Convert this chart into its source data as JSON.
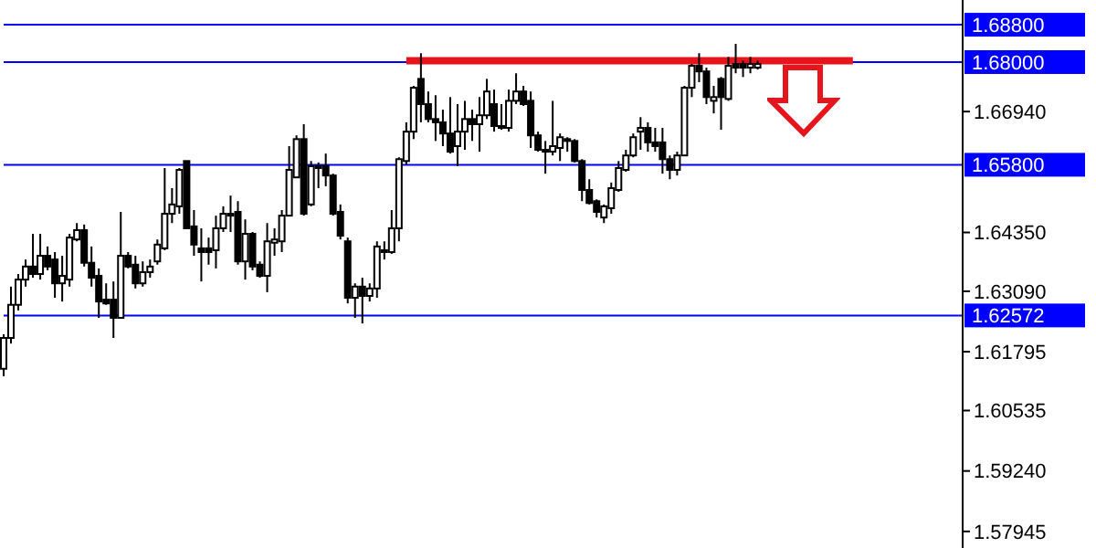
{
  "chart_data": {
    "type": "candlestick",
    "tick_labels": "y",
    "categories": [
      null,
      null,
      null,
      null,
      null,
      null,
      null,
      null,
      null,
      null,
      null,
      null,
      null,
      null,
      null,
      null,
      null,
      null,
      null,
      null,
      null,
      null,
      null,
      null,
      null,
      null,
      null,
      null,
      null,
      null,
      null,
      null,
      null,
      null,
      null,
      null,
      null,
      null,
      null,
      null,
      null,
      null,
      null,
      null,
      null,
      null,
      null,
      null,
      null,
      null,
      null,
      null,
      null,
      null,
      null,
      null,
      null,
      null,
      null,
      null,
      null,
      null,
      null,
      null,
      null,
      null,
      null,
      null,
      null,
      null,
      null,
      null,
      null,
      null,
      null,
      null,
      null,
      null,
      null,
      null,
      null,
      null,
      null,
      null,
      null,
      null,
      null,
      null,
      null,
      null,
      null,
      null,
      null,
      null,
      null,
      null,
      null,
      null,
      null,
      null,
      null,
      null,
      null,
      null,
      null,
      null,
      null,
      null,
      null,
      null,
      null,
      null,
      null,
      null,
      null,
      null,
      null,
      null,
      null,
      null,
      null,
      null,
      null,
      null,
      null,
      null,
      null,
      null,
      null,
      null,
      null,
      null
    ],
    "ylim": [
      1.5759,
      1.6933
    ],
    "yticks": [
      {
        "value": 1.57945,
        "label": "1.57945"
      },
      {
        "value": 1.5924,
        "label": "1.59240"
      },
      {
        "value": 1.60535,
        "label": "1.60535"
      },
      {
        "value": 1.61795,
        "label": "1.61795"
      },
      {
        "value": 1.6309,
        "label": "1.63090"
      },
      {
        "value": 1.6435,
        "label": "1.64350"
      },
      {
        "value": 1.6694,
        "label": "1.66940"
      }
    ],
    "ref_lines": [
      {
        "axis": "y",
        "value": 1.688,
        "label": "1.68800",
        "color": "#0000ff"
      },
      {
        "axis": "y",
        "value": 1.68,
        "label": "1.68000",
        "color": "#0000ff"
      },
      {
        "axis": "y",
        "value": 1.658,
        "label": "1.65800",
        "color": "#0000ff"
      },
      {
        "axis": "y",
        "value": 1.62572,
        "label": "1.62572",
        "color": "#0000ff"
      }
    ],
    "series": [
      {
        "color": "#000000",
        "ohlc": [
          [
            1.6143,
            1.6217,
            1.6127,
            1.6209
          ],
          [
            1.6209,
            1.6319,
            1.6197,
            1.628
          ],
          [
            1.628,
            1.6346,
            1.6268,
            1.6334
          ],
          [
            1.6334,
            1.6377,
            1.6319,
            1.6362
          ],
          [
            1.6362,
            1.6432,
            1.6338,
            1.6346
          ],
          [
            1.6346,
            1.6432,
            1.6334,
            1.6385
          ],
          [
            1.6385,
            1.6405,
            1.6354,
            1.6362
          ],
          [
            1.6377,
            1.6393,
            1.6295,
            1.6326
          ],
          [
            1.6326,
            1.6385,
            1.6287,
            1.6342
          ],
          [
            1.6334,
            1.6432,
            1.6319,
            1.6424
          ],
          [
            1.642,
            1.6455,
            1.6416,
            1.644
          ],
          [
            1.644,
            1.6452,
            1.6362,
            1.637
          ],
          [
            1.637,
            1.6405,
            1.6319,
            1.6338
          ],
          [
            1.6342,
            1.6358,
            1.6252,
            1.6287
          ],
          [
            1.6291,
            1.6326,
            1.628,
            1.6283
          ],
          [
            1.6291,
            1.633,
            1.6209,
            1.6252
          ],
          [
            1.6252,
            1.6479,
            1.6252,
            1.6385
          ],
          [
            1.6385,
            1.6393,
            1.6358,
            1.6362
          ],
          [
            1.6366,
            1.6385,
            1.6315,
            1.6326
          ],
          [
            1.6326,
            1.6373,
            1.6319,
            1.635
          ],
          [
            1.635,
            1.6377,
            1.6338,
            1.6362
          ],
          [
            1.6373,
            1.642,
            1.6366,
            1.6409
          ],
          [
            1.6401,
            1.6573,
            1.6397,
            1.6475
          ],
          [
            1.6475,
            1.653,
            1.6455,
            1.6495
          ],
          [
            1.6491,
            1.6573,
            1.6475,
            1.6569
          ],
          [
            1.6588,
            1.6588,
            1.6444,
            1.6444
          ],
          [
            1.6448,
            1.6483,
            1.6385,
            1.6409
          ],
          [
            1.6401,
            1.6444,
            1.633,
            1.6393
          ],
          [
            1.6401,
            1.6424,
            1.6366,
            1.6393
          ],
          [
            1.6397,
            1.6471,
            1.6358,
            1.6444
          ],
          [
            1.6444,
            1.6491,
            1.6436,
            1.6475
          ],
          [
            1.6471,
            1.6514,
            1.6436,
            1.6475
          ],
          [
            1.6479,
            1.6502,
            1.6366,
            1.6373
          ],
          [
            1.6373,
            1.6463,
            1.6334,
            1.6432
          ],
          [
            1.6432,
            1.6436,
            1.6354,
            1.6362
          ],
          [
            1.6366,
            1.6373,
            1.6338,
            1.6342
          ],
          [
            1.6342,
            1.6455,
            1.6307,
            1.6416
          ],
          [
            1.6413,
            1.6444,
            1.6385,
            1.642
          ],
          [
            1.6416,
            1.6483,
            1.6393,
            1.6471
          ],
          [
            1.6471,
            1.662,
            1.6471,
            1.6569
          ],
          [
            1.6553,
            1.6643,
            1.6553,
            1.6635
          ],
          [
            1.6635,
            1.6667,
            1.6471,
            1.6475
          ],
          [
            1.6495,
            1.6588,
            1.6491,
            1.6577
          ],
          [
            1.6573,
            1.6585,
            1.653,
            1.6577
          ],
          [
            1.6577,
            1.6604,
            1.6534,
            1.6557
          ],
          [
            1.6557,
            1.6561,
            1.6471,
            1.6475
          ],
          [
            1.6479,
            1.6495,
            1.642,
            1.6428
          ],
          [
            1.6416,
            1.6424,
            1.6283,
            1.6295
          ],
          [
            1.6295,
            1.6326,
            1.6252,
            1.6319
          ],
          [
            1.6319,
            1.6338,
            1.624,
            1.6299
          ],
          [
            1.6299,
            1.6326,
            1.6287,
            1.6315
          ],
          [
            1.6315,
            1.6416,
            1.6295,
            1.6405
          ],
          [
            1.6397,
            1.6416,
            1.6377,
            1.6393
          ],
          [
            1.6393,
            1.6483,
            1.6389,
            1.6444
          ],
          [
            1.6444,
            1.6596,
            1.6416,
            1.6592
          ],
          [
            1.6588,
            1.6671,
            1.6581,
            1.6651
          ],
          [
            1.6651,
            1.6749,
            1.6635,
            1.6745
          ],
          [
            1.6764,
            1.6819,
            1.6671,
            1.671
          ],
          [
            1.671,
            1.6737,
            1.6671,
            1.6678
          ],
          [
            1.6678,
            1.6729,
            1.6631,
            1.6671
          ],
          [
            1.6671,
            1.6698,
            1.662,
            1.6647
          ],
          [
            1.6647,
            1.6725,
            1.6604,
            1.6608
          ],
          [
            1.662,
            1.671,
            1.6577,
            1.6651
          ],
          [
            1.6651,
            1.6717,
            1.6612,
            1.6678
          ],
          [
            1.6678,
            1.6698,
            1.6631,
            1.6667
          ],
          [
            1.6667,
            1.6725,
            1.6608,
            1.6686
          ],
          [
            1.6686,
            1.6764,
            1.6678,
            1.6737
          ],
          [
            1.671,
            1.6741,
            1.6651,
            1.6663
          ],
          [
            1.6659,
            1.671,
            1.6655,
            1.6663
          ],
          [
            1.6659,
            1.6741,
            1.6651,
            1.6717
          ],
          [
            1.6717,
            1.6776,
            1.671,
            1.6737
          ],
          [
            1.6737,
            1.6749,
            1.6706,
            1.671
          ],
          [
            1.6717,
            1.6737,
            1.6616,
            1.6643
          ],
          [
            1.6643,
            1.6651,
            1.6608,
            1.6612
          ],
          [
            1.6612,
            1.6631,
            1.6561,
            1.6608
          ],
          [
            1.6608,
            1.6717,
            1.66,
            1.662
          ],
          [
            1.6616,
            1.6647,
            1.6588,
            1.6639
          ],
          [
            1.6635,
            1.6639,
            1.6608,
            1.6631
          ],
          [
            1.6631,
            1.6635,
            1.6585,
            1.6588
          ],
          [
            1.6588,
            1.6592,
            1.6502,
            1.6526
          ],
          [
            1.6526,
            1.6549,
            1.6495,
            1.6498
          ],
          [
            1.6502,
            1.6506,
            1.6467,
            1.6479
          ],
          [
            1.6467,
            1.6495,
            1.6455,
            1.6491
          ],
          [
            1.6487,
            1.6542,
            1.6475,
            1.653
          ],
          [
            1.6526,
            1.6588,
            1.6522,
            1.6573
          ],
          [
            1.6569,
            1.6612,
            1.6565,
            1.66
          ],
          [
            1.66,
            1.6647,
            1.6596,
            1.6639
          ],
          [
            1.6651,
            1.6682,
            1.6612,
            1.6659
          ],
          [
            1.6659,
            1.6671,
            1.6608,
            1.6628
          ],
          [
            1.6628,
            1.6659,
            1.6608,
            1.662
          ],
          [
            1.6628,
            1.6659,
            1.6561,
            1.6592
          ],
          [
            1.6592,
            1.66,
            1.6549,
            1.6569
          ],
          [
            1.6569,
            1.6608,
            1.6557,
            1.66
          ],
          [
            1.66,
            1.6749,
            1.66,
            1.6745
          ],
          [
            1.6745,
            1.6796,
            1.6725,
            1.6792
          ],
          [
            1.6792,
            1.6819,
            1.6757,
            1.678
          ],
          [
            1.678,
            1.6788,
            1.671,
            1.6725
          ],
          [
            1.6717,
            1.6749,
            1.669,
            1.6725
          ],
          [
            1.6764,
            1.6768,
            1.6655,
            1.6725
          ],
          [
            1.6721,
            1.6811,
            1.6717,
            1.6792
          ],
          [
            1.6796,
            1.6839,
            1.6776,
            1.6788
          ],
          [
            1.6796,
            1.6803,
            1.6768,
            1.6788
          ],
          [
            1.6788,
            1.6811,
            1.6776,
            1.6796
          ],
          [
            1.6788,
            1.6803,
            1.6784,
            1.6796
          ],
          null,
          null,
          null,
          null,
          null,
          null,
          null,
          null,
          null,
          null,
          null,
          null,
          null,
          null,
          null,
          null,
          null,
          null,
          null,
          null,
          null,
          null,
          null,
          null,
          null,
          null,
          null,
          null
        ]
      },
      {
        "type": "line",
        "color": "#e8141c",
        "values": [
          null,
          null,
          null,
          null,
          null,
          null,
          null,
          null,
          null,
          null,
          null,
          null,
          null,
          null,
          null,
          null,
          null,
          null,
          null,
          null,
          null,
          null,
          null,
          null,
          null,
          null,
          null,
          null,
          null,
          null,
          null,
          null,
          null,
          null,
          null,
          null,
          null,
          null,
          null,
          null,
          null,
          null,
          null,
          null,
          null,
          null,
          null,
          null,
          null,
          null,
          null,
          null,
          null,
          null,
          null,
          1.6803,
          1.6803,
          1.6803,
          1.6803,
          1.6803,
          1.6803,
          1.6803,
          1.6803,
          1.6803,
          1.6803,
          1.6803,
          1.6803,
          1.6803,
          1.6803,
          1.6803,
          1.6803,
          1.6803,
          1.6803,
          1.6803,
          1.6803,
          1.6803,
          1.6803,
          1.6803,
          1.6803,
          1.6803,
          1.6803,
          1.6803,
          1.6803,
          1.6803,
          1.6803,
          1.6803,
          1.6803,
          1.6803,
          1.6803,
          1.6803,
          1.6803,
          1.6803,
          1.6803,
          1.6803,
          1.6803,
          1.6803,
          1.6803,
          1.6803,
          1.6803,
          1.6803,
          1.6803,
          1.6803,
          1.6803,
          1.6803,
          1.6803,
          1.6803,
          1.6803,
          1.6803,
          1.6803,
          1.6803,
          1.6803,
          1.6803,
          1.6803,
          1.6803,
          1.6803,
          1.6803,
          1.6803,
          null,
          null,
          null,
          null,
          null,
          null,
          null,
          null,
          null,
          null,
          null,
          null,
          null,
          null,
          null
        ]
      }
    ]
  }
}
